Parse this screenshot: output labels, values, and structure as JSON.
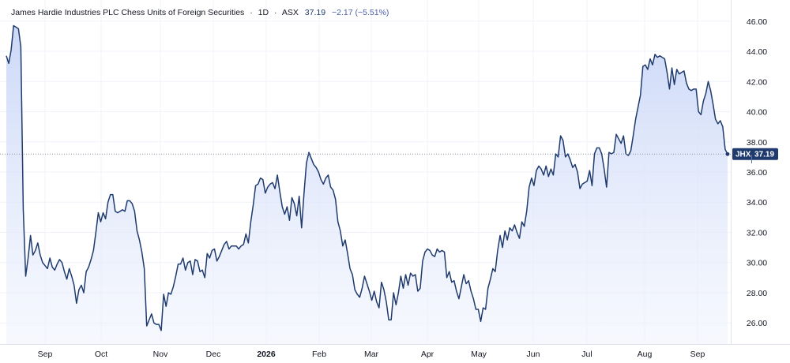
{
  "header": {
    "name": "James Hardie Industries PLC Chess Units of Foreign Securities",
    "sep1": "·",
    "interval": "1D",
    "sep2": "·",
    "exchange": "ASX",
    "price": "37.19",
    "change": "−2.17 (−5.51%)"
  },
  "badge": {
    "symbol": "JHX",
    "price": "37.19"
  },
  "colors": {
    "line": "#1f3b6e",
    "fill_top": "#c9d6f7",
    "fill_bottom": "#eef2fd",
    "badge": "#1f3b6e",
    "dotted": "#8a94a6"
  },
  "chart_data": {
    "type": "area",
    "x_labels": [
      "Sep",
      "Oct",
      "Nov",
      "Dec",
      "2026",
      "Feb",
      "Mar",
      "Apr",
      "May",
      "Jun",
      "Jul",
      "Aug",
      "Sep"
    ],
    "bold_labels": [
      "2026"
    ],
    "y_ticks": [
      26,
      28,
      30,
      32,
      34,
      36,
      38,
      40,
      42,
      44,
      46
    ],
    "ylim": [
      24.6,
      47.4
    ],
    "last_value": 37.19,
    "grid": true,
    "values": [
      43.7,
      43.2,
      44.1,
      45.7,
      45.6,
      45.5,
      44.3,
      33.5,
      29.1,
      30.3,
      31.8,
      30.5,
      30.8,
      31.3,
      30.5,
      30.0,
      29.8,
      29.6,
      30.3,
      29.7,
      29.5,
      29.9,
      30.2,
      30.0,
      29.4,
      28.9,
      29.6,
      29.1,
      28.5,
      27.3,
      28.2,
      28.5,
      28.0,
      29.4,
      29.7,
      30.2,
      30.8,
      32.0,
      33.3,
      32.7,
      33.3,
      32.9,
      34.0,
      34.5,
      34.5,
      33.4,
      33.3,
      33.4,
      33.5,
      33.4,
      34.1,
      34.1,
      33.9,
      33.4,
      32.1,
      31.5,
      30.7,
      29.6,
      25.8,
      26.2,
      26.6,
      26.0,
      25.9,
      25.9,
      25.5,
      27.9,
      27.1,
      28.0,
      27.9,
      28.4,
      29.1,
      29.9,
      29.9,
      30.3,
      29.5,
      30.0,
      30.1,
      29.2,
      30.2,
      30.1,
      29.4,
      29.5,
      29.0,
      30.6,
      30.3,
      30.8,
      30.9,
      30.1,
      30.4,
      30.8,
      31.2,
      31.4,
      30.9,
      31.1,
      31.1,
      31.1,
      30.9,
      31.1,
      31.2,
      31.9,
      31.3,
      32.7,
      33.8,
      35.1,
      35.2,
      35.6,
      35.5,
      34.6,
      35.0,
      35.2,
      35.3,
      34.9,
      35.8,
      34.7,
      33.7,
      33.2,
      33.7,
      32.8,
      34.3,
      33.9,
      33.1,
      34.4,
      32.3,
      34.6,
      36.6,
      37.3,
      36.9,
      36.5,
      36.3,
      36.0,
      35.5,
      35.2,
      35.6,
      35.8,
      35.0,
      34.8,
      34.2,
      32.7,
      32.1,
      31.1,
      31.5,
      30.6,
      29.6,
      29.2,
      28.2,
      27.9,
      27.7,
      28.3,
      29.1,
      28.6,
      28.1,
      27.5,
      28.1,
      27.4,
      27.0,
      28.7,
      28.2,
      27.4,
      26.2,
      26.2,
      28.0,
      27.2,
      28.0,
      29.1,
      28.3,
      29.2,
      28.5,
      29.3,
      29.1,
      29.2,
      28.1,
      28.3,
      30.1,
      30.7,
      30.9,
      30.8,
      30.5,
      30.4,
      30.9,
      30.7,
      30.8,
      30.7,
      29.0,
      29.4,
      28.7,
      28.8,
      28.1,
      27.6,
      28.4,
      29.2,
      28.6,
      28.8,
      28.1,
      27.6,
      26.9,
      26.9,
      26.1,
      27.0,
      26.9,
      28.3,
      28.9,
      29.6,
      29.4,
      30.8,
      31.8,
      31.0,
      32.1,
      31.5,
      32.3,
      32.1,
      32.5,
      32.0,
      31.6,
      32.7,
      32.4,
      33.4,
      35.0,
      35.6,
      35.1,
      36.1,
      36.4,
      36.2,
      35.8,
      36.4,
      35.7,
      36.2,
      35.8,
      37.2,
      37.0,
      38.4,
      38.1,
      37.0,
      37.2,
      36.8,
      36.3,
      36.5,
      36.0,
      34.9,
      35.2,
      35.3,
      35.4,
      36.1,
      35.1,
      37.2,
      37.6,
      37.6,
      37.2,
      36.2,
      35.0,
      37.3,
      37.2,
      37.3,
      38.5,
      38.2,
      37.9,
      38.4,
      37.2,
      37.1,
      37.4,
      38.4,
      39.5,
      40.3,
      41.1,
      43.0,
      43.1,
      42.8,
      43.5,
      43.1,
      43.8,
      43.6,
      43.7,
      43.6,
      43.5,
      42.6,
      41.5,
      42.9,
      41.8,
      42.8,
      42.5,
      42.6,
      42.7,
      41.9,
      41.5,
      41.4,
      41.5,
      41.5,
      40.0,
      39.8,
      40.7,
      41.2,
      42.0,
      41.4,
      40.5,
      39.5,
      39.2,
      39.4,
      39.0,
      37.5,
      37.19
    ]
  }
}
